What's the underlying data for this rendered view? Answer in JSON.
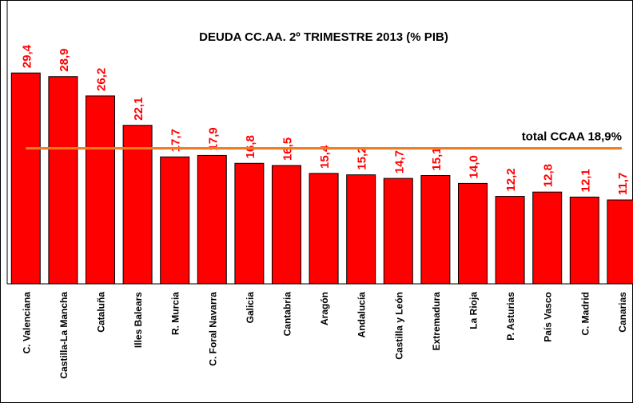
{
  "chart_data": {
    "type": "bar",
    "title": "DEUDA CC.AA. 2º TRIMESTRE 2013 (% PIB)",
    "categories": [
      "C. Valenciana",
      "Castilla-La Mancha",
      "Cataluña",
      "Illes Balears",
      "R. Murcia",
      "C. Foral Navarra",
      "Galicia",
      "Cantabria",
      "Aragón",
      "Andalucía",
      "Castilla y León",
      "Extremadura",
      "La Rioja",
      "P. Asturias",
      "País Vasco",
      "C. Madrid",
      "Canarias"
    ],
    "values": [
      29.4,
      28.9,
      26.2,
      22.1,
      17.7,
      17.9,
      16.8,
      16.5,
      15.4,
      15.2,
      14.7,
      15.1,
      14.0,
      12.2,
      12.8,
      12.1,
      11.7
    ],
    "value_labels": [
      "29,4",
      "28,9",
      "26,2",
      "22,1",
      "17,7",
      "17,9",
      "16,8",
      "16,5",
      "15,4",
      "15,2",
      "14,7",
      "15,1",
      "14,0",
      "12,2",
      "12,8",
      "12,1",
      "11,7"
    ],
    "color": "#ff0000",
    "label_color": "#ff0000",
    "ylim": [
      0,
      35
    ],
    "reference_line": {
      "value": 18.9,
      "label": "total CCAA 18,9%",
      "color": "#f07c1f"
    }
  }
}
